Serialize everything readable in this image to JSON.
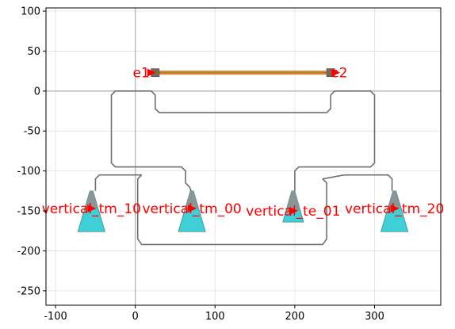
{
  "chart_data": {
    "type": "layout-plot",
    "xlim": [
      -112,
      383
    ],
    "ylim": [
      -268,
      104
    ],
    "xticks": [
      -100,
      0,
      100,
      200,
      300
    ],
    "yticks": [
      100,
      50,
      0,
      -50,
      -100,
      -150,
      -200,
      -250
    ],
    "grid": true,
    "axis_lines": {
      "x": 0,
      "y": 0
    },
    "colors": {
      "waveguide": "#6f6f6f",
      "heater": "#e3822a",
      "heater_core": "#8a8a5a",
      "pad": "#7a6a5a",
      "coupler_cyan": "#3fcfd6",
      "coupler_grey": "#8f8f8f",
      "label": "#ff0000",
      "grid": "#e0e0e0",
      "axis_line": "#b0b0b0"
    },
    "heater": {
      "x1": 25,
      "x2": 245,
      "y": 23
    },
    "pads": [
      {
        "x": 25,
        "y": 23
      },
      {
        "x": 245,
        "y": 23
      }
    ],
    "ports": [
      {
        "name": "e1",
        "x": 20,
        "y": 23,
        "align": "end"
      },
      {
        "name": "e2",
        "x": 251,
        "y": 23,
        "align": "start"
      },
      {
        "name": "vertical_tm_10",
        "x": -55,
        "y": -147,
        "align": "middle"
      },
      {
        "name": "vertical_tm_00",
        "x": 71,
        "y": -147,
        "align": "middle"
      },
      {
        "name": "vertical_te_01",
        "x": 198,
        "y": -150,
        "align": "middle"
      },
      {
        "name": "vertical_tm_20",
        "x": 325,
        "y": -147,
        "align": "middle"
      }
    ],
    "couplers": [
      {
        "x": -55,
        "y_top": -125,
        "y_bottom": -176,
        "w_bottom": 34,
        "w_top": 4,
        "grey_to": -147
      },
      {
        "x": 71,
        "y_top": -125,
        "y_bottom": -176,
        "w_bottom": 34,
        "w_top": 4,
        "grey_to": -147
      },
      {
        "x": 198,
        "y_top": -125,
        "y_bottom": -164,
        "w_bottom": 26,
        "w_top": 4,
        "grey_to": -150
      },
      {
        "x": 325,
        "y_top": -125,
        "y_bottom": -176,
        "w_bottom": 34,
        "w_top": 4,
        "grey_to": -147
      }
    ],
    "waveguides": [
      [
        [
          0,
          0
        ],
        [
          -25,
          0
        ],
        [
          -30,
          -5
        ],
        [
          -30,
          -90
        ],
        [
          -25,
          -95
        ],
        [
          58,
          -95
        ],
        [
          63,
          -100
        ],
        [
          63,
          -115
        ],
        [
          68,
          -120
        ],
        [
          70,
          -125
        ]
      ],
      [
        [
          0,
          0
        ],
        [
          20,
          0
        ],
        [
          25,
          -5
        ],
        [
          25,
          -22
        ],
        [
          30,
          -27
        ],
        [
          240,
          -27
        ],
        [
          245,
          -22
        ],
        [
          245,
          -5
        ],
        [
          250,
          0
        ],
        [
          270,
          0
        ]
      ],
      [
        [
          270,
          0
        ],
        [
          295,
          0
        ],
        [
          300,
          -5
        ],
        [
          300,
          -90
        ],
        [
          295,
          -95
        ],
        [
          205,
          -95
        ],
        [
          200,
          -100
        ],
        [
          200,
          -125
        ]
      ],
      [
        [
          8,
          -105
        ],
        [
          -45,
          -105
        ],
        [
          -50,
          -110
        ],
        [
          -50,
          -125
        ]
      ],
      [
        [
          8,
          -105
        ],
        [
          3,
          -110
        ],
        [
          3,
          -185
        ],
        [
          8,
          -192
        ],
        [
          235,
          -192
        ],
        [
          240,
          -185
        ],
        [
          240,
          -115
        ],
        [
          235,
          -110
        ],
        [
          262,
          -105
        ]
      ],
      [
        [
          262,
          -105
        ],
        [
          317,
          -105
        ],
        [
          322,
          -110
        ],
        [
          322,
          -125
        ]
      ]
    ]
  }
}
